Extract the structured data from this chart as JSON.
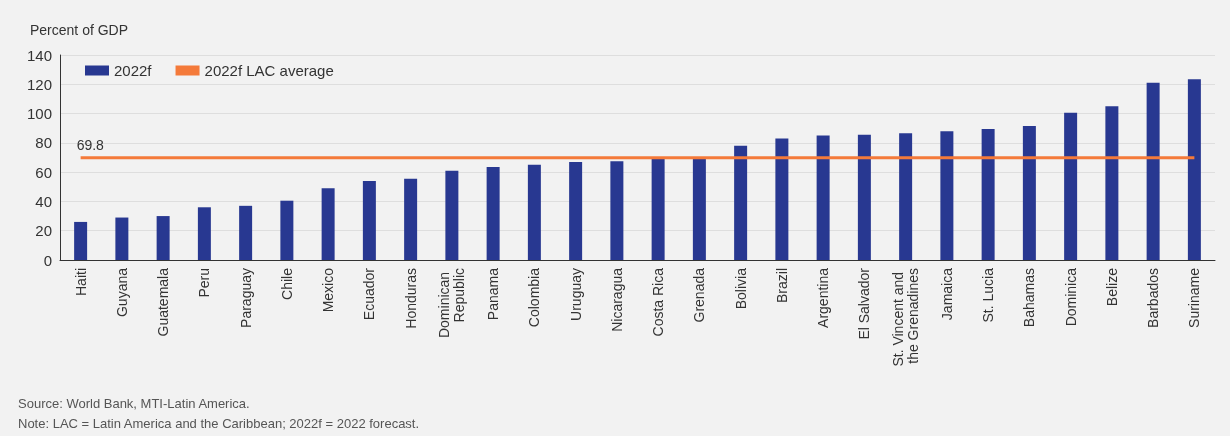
{
  "chart_data": {
    "type": "bar",
    "ylabel": "Percent of GDP",
    "categories": [
      "Haiti",
      "Guyana",
      "Guatemala",
      "Peru",
      "Paraguay",
      "Chile",
      "Mexico",
      "Ecuador",
      "Honduras",
      "Dominican Republic",
      "Panama",
      "Colombia",
      "Uruguay",
      "Nicaragua",
      "Costa Rica",
      "Grenada",
      "Bolivia",
      "Brazil",
      "Argentina",
      "El Salvador",
      "St. Vincent and the Grenadines",
      "Jamaica",
      "St. Lucia",
      "Bahamas",
      "Dominica",
      "Belize",
      "Barbados",
      "Suriname"
    ],
    "series": [
      {
        "name": "2022f",
        "color": "#283891",
        "values": [
          26,
          29,
          30,
          36,
          37,
          40.5,
          49,
          54,
          55.5,
          61,
          63.5,
          65,
          67,
          67.5,
          69.5,
          69.5,
          78,
          83,
          85,
          85.5,
          86.5,
          88,
          89.5,
          91.5,
          100.5,
          105,
          121,
          123.5
        ]
      },
      {
        "name": "2022f LAC average",
        "type": "line",
        "color": "#f47a3a",
        "values": [
          69.8,
          69.8,
          69.8,
          69.8,
          69.8,
          69.8,
          69.8,
          69.8,
          69.8,
          69.8,
          69.8,
          69.8,
          69.8,
          69.8,
          69.8,
          69.8,
          69.8,
          69.8,
          69.8,
          69.8,
          69.8,
          69.8,
          69.8,
          69.8,
          69.8,
          69.8,
          69.8,
          69.8
        ],
        "value_labels": [
          "69.8",
          null,
          null,
          null,
          null,
          null,
          null,
          null,
          null,
          null,
          null,
          null,
          null,
          null,
          null,
          null,
          null,
          null,
          null,
          null,
          null,
          null,
          null,
          null,
          null,
          null,
          null,
          null
        ]
      }
    ],
    "ylim": [
      0,
      140
    ],
    "yticks": [
      0,
      20,
      40,
      60,
      80,
      100,
      120,
      140
    ],
    "grid": "y",
    "legend": "top left",
    "marker": "none",
    "annotations": [
      "Source: World Bank, MTI-Latin America.",
      "Note: LAC = Latin America and the Caribbean; 2022f = 2022 forecast."
    ]
  }
}
